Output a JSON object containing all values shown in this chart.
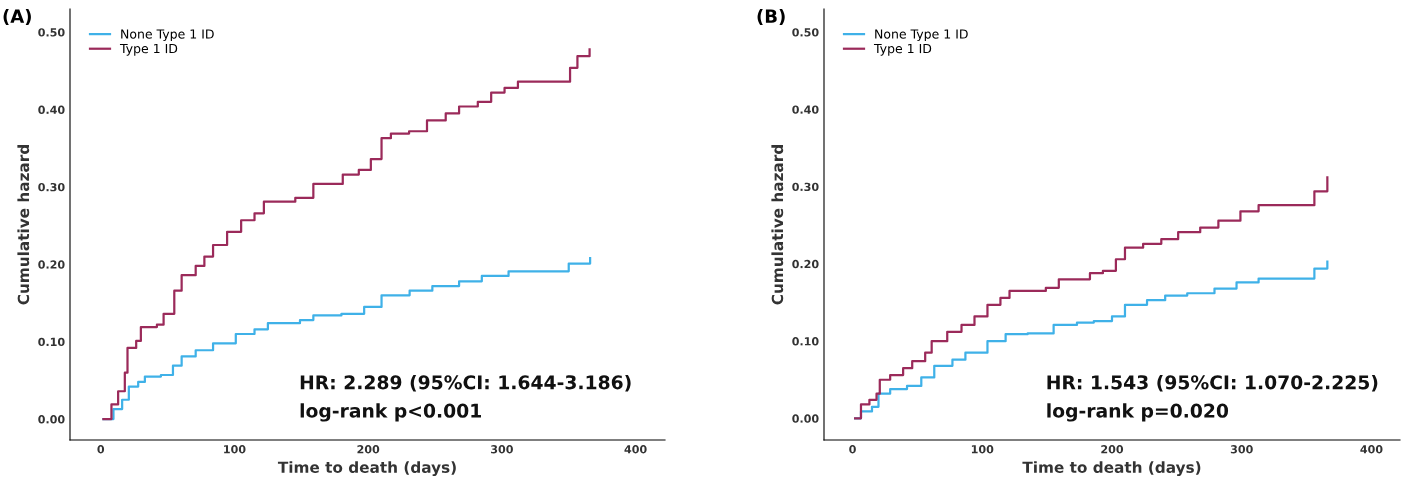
{
  "chart_data": [
    {
      "type": "step",
      "title": "(A)",
      "xlabel": "Time to death (days)",
      "ylabel": "Cumulative hazard",
      "xlim": [
        -23,
        422
      ],
      "xticks": [
        0,
        100,
        200,
        300,
        400
      ],
      "ylim": [
        -0.027,
        0.53
      ],
      "yticks": [
        {
          "value": 0,
          "label": "0.00"
        },
        {
          "value": 0.1,
          "label": "0.10"
        },
        {
          "value": 0.2,
          "label": "0.20"
        },
        {
          "value": 0.3,
          "label": "0.30"
        },
        {
          "value": 0.4,
          "label": "0.40"
        },
        {
          "value": 0.5,
          "label": "0.50"
        }
      ],
      "grid": false,
      "legend": "top left",
      "marker": "none",
      "line_style": "solid",
      "annotations": [
        "HR: 2.289 (95%CI: 1.644-3.186)",
        "log-rank p<0.001"
      ],
      "series": [
        {
          "name": "None Type 1 ID",
          "color": "#3fb1e8",
          "x": [
            2,
            9.5,
            16,
            21,
            28,
            33,
            45,
            54,
            60.5,
            71,
            84,
            101,
            115,
            125,
            149,
            159,
            180,
            197,
            210,
            231,
            248,
            268,
            285,
            305,
            343,
            350,
            366
          ],
          "values": [
            0,
            0.013,
            0.025,
            0.042,
            0.048,
            0.055,
            0.057,
            0.069,
            0.081,
            0.089,
            0.098,
            0.11,
            0.116,
            0.124,
            0.128,
            0.134,
            0.136,
            0.145,
            0.16,
            0.166,
            0.172,
            0.178,
            0.185,
            0.191,
            0.191,
            0.201,
            0.208
          ]
        },
        {
          "name": "Type 1 ID",
          "color": "#9b2a5a",
          "x": [
            2,
            8,
            13,
            18,
            20,
            26.5,
            30,
            42,
            47,
            55,
            60.5,
            71,
            77.5,
            84,
            94.5,
            105,
            115,
            122,
            145.5,
            159,
            178,
            181,
            193,
            202,
            210,
            217,
            230.6,
            244,
            258,
            268,
            282,
            292,
            302,
            312,
            344.5,
            351,
            356.5,
            365.6
          ],
          "values": [
            0,
            0.019,
            0.036,
            0.06,
            0.092,
            0.101,
            0.119,
            0.122,
            0.136,
            0.166,
            0.186,
            0.198,
            0.21,
            0.225,
            0.242,
            0.257,
            0.266,
            0.281,
            0.286,
            0.304,
            0.304,
            0.316,
            0.322,
            0.336,
            0.363,
            0.369,
            0.372,
            0.386,
            0.395,
            0.404,
            0.41,
            0.422,
            0.428,
            0.436,
            0.436,
            0.454,
            0.469,
            0.478
          ]
        }
      ]
    },
    {
      "type": "step",
      "title": "(B)",
      "xlabel": "Time to death (days)",
      "ylabel": "Cumulative hazard",
      "xlim": [
        -22,
        422
      ],
      "xticks": [
        0,
        100,
        200,
        300,
        400
      ],
      "ylim": [
        -0.028,
        0.53
      ],
      "yticks": [
        {
          "value": 0,
          "label": "0.00"
        },
        {
          "value": 0.1,
          "label": "0.10"
        },
        {
          "value": 0.2,
          "label": "0.20"
        },
        {
          "value": 0.3,
          "label": "0.30"
        },
        {
          "value": 0.4,
          "label": "0.40"
        },
        {
          "value": 0.5,
          "label": "0.50"
        }
      ],
      "grid": false,
      "legend": "top left",
      "marker": "none",
      "line_style": "solid",
      "annotations": [
        "HR: 1.543 (95%CI: 1.070-2.225)",
        "log-rank p=0.020"
      ],
      "series": [
        {
          "name": "None Type 1 ID",
          "color": "#3fb1e8",
          "x": [
            2,
            6.5,
            15,
            20,
            29,
            42,
            53,
            63,
            77,
            87,
            104,
            118,
            135,
            155,
            173,
            186,
            200,
            210,
            227,
            241,
            258,
            279,
            296,
            313,
            346,
            356,
            366
          ],
          "values": [
            0,
            0.009,
            0.015,
            0.032,
            0.038,
            0.042,
            0.053,
            0.068,
            0.076,
            0.085,
            0.1,
            0.109,
            0.11,
            0.121,
            0.124,
            0.126,
            0.132,
            0.147,
            0.153,
            0.159,
            0.162,
            0.168,
            0.176,
            0.181,
            0.181,
            0.194,
            0.203
          ]
        },
        {
          "name": "Type 1 ID",
          "color": "#9b2a5a",
          "x": [
            2,
            6.5,
            13,
            18.5,
            21,
            29,
            39,
            46,
            56,
            61,
            73,
            84,
            94,
            104,
            114,
            121,
            149,
            159,
            176,
            183,
            193,
            203,
            210,
            224,
            238,
            251,
            268,
            282,
            299,
            313,
            346,
            356,
            366
          ],
          "values": [
            0,
            0.018,
            0.024,
            0.032,
            0.05,
            0.056,
            0.065,
            0.074,
            0.085,
            0.1,
            0.112,
            0.121,
            0.132,
            0.147,
            0.156,
            0.165,
            0.169,
            0.18,
            0.18,
            0.188,
            0.191,
            0.206,
            0.221,
            0.226,
            0.232,
            0.241,
            0.247,
            0.256,
            0.268,
            0.276,
            0.276,
            0.294,
            0.312
          ]
        }
      ]
    }
  ]
}
